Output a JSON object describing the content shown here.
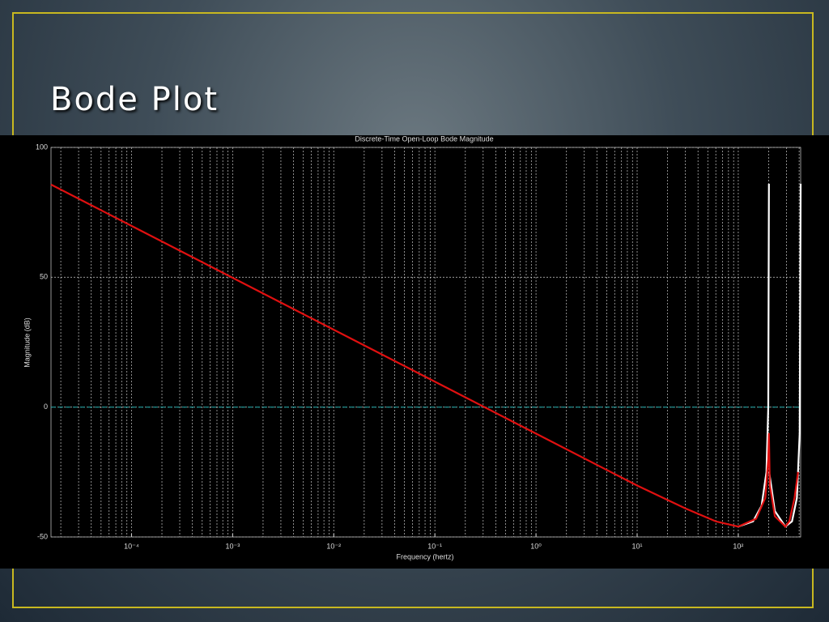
{
  "slide": {
    "title": "Bode Plot"
  },
  "chart_data": {
    "type": "line",
    "title": "Discrete-Time Open-Loop Bode Magnitude",
    "xlabel": "Frequency  (hertz)",
    "ylabel": "Magnitude (dB)",
    "xscale": "log",
    "xlim": [
      1.6e-05,
      414
    ],
    "xticks": [
      {
        "value": 0.0001,
        "label": "10⁻⁴"
      },
      {
        "value": 0.001,
        "label": "10⁻³"
      },
      {
        "value": 0.01,
        "label": "10⁻²"
      },
      {
        "value": 0.1,
        "label": "10⁻¹"
      },
      {
        "value": 1,
        "label": "10⁰"
      },
      {
        "value": 10,
        "label": "10¹"
      },
      {
        "value": 100,
        "label": "10²"
      }
    ],
    "ylim": [
      -50,
      100
    ],
    "yticks": [
      -50,
      0,
      50,
      100
    ],
    "grid": true,
    "reference_line": {
      "value": 0,
      "color": "#1f9a9a"
    },
    "series": [
      {
        "color": "#ffffff",
        "x": [
          100,
          140,
          170,
          190,
          198,
          201,
          null,
          202,
          230,
          292,
          340,
          380,
          405,
          414
        ],
        "values": [
          -46,
          -44,
          -38,
          -25,
          0,
          86,
          null,
          -25,
          -40,
          -46,
          -44,
          -35,
          -10,
          86
        ]
      },
      {
        "color": "#e01010",
        "x": [
          1.6e-05,
          0.0001,
          0.001,
          0.01,
          0.1,
          1,
          10,
          30,
          60,
          100,
          150,
          185,
          198,
          201,
          205,
          230,
          292,
          320,
          360,
          390
        ],
        "values": [
          85.7,
          69.8,
          49.8,
          29.8,
          9.8,
          -10.2,
          -30.2,
          -39,
          -44,
          -46,
          -43,
          -35,
          -20,
          -10,
          -30,
          -42,
          -46,
          -44,
          -35,
          -25
        ]
      }
    ]
  }
}
